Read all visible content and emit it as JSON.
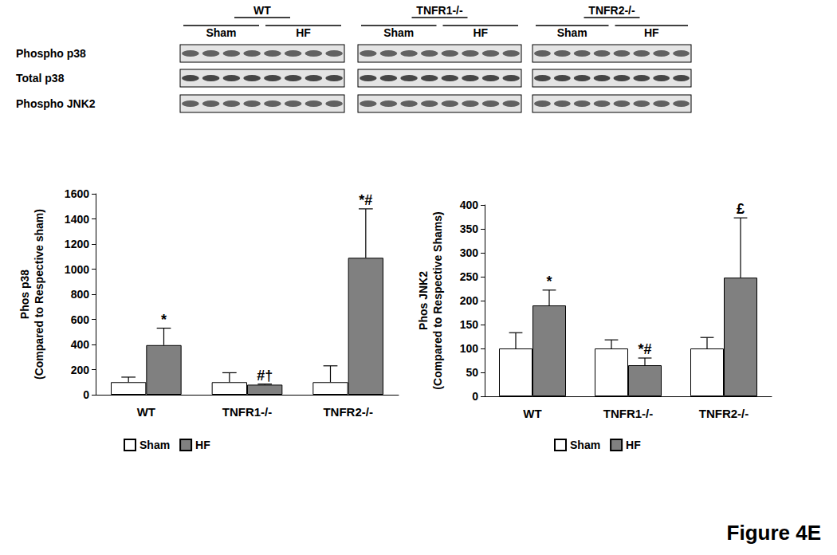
{
  "figure_label": "Figure 4E",
  "blots": {
    "groups": [
      {
        "label": "WT",
        "lanes": [
          "Sham",
          "HF"
        ]
      },
      {
        "label": "TNFR1-/-",
        "lanes": [
          "Sham",
          "HF"
        ]
      },
      {
        "label": "TNFR2-/-",
        "lanes": [
          "Sham",
          "HF"
        ]
      }
    ],
    "rows": [
      "Phospho p38",
      "Total p38",
      "Phospho JNK2"
    ]
  },
  "chart_data": [
    {
      "type": "bar",
      "y_label": "Phos p38\n(Compared to Respective sham)",
      "categories": [
        "WT",
        "TNFR1-/-",
        "TNFR2-/-"
      ],
      "series": [
        {
          "name": "Sham",
          "color": "#ffffff",
          "values": [
            100,
            100,
            100
          ],
          "errors": [
            40,
            75,
            130
          ]
        },
        {
          "name": "HF",
          "color": "#808080",
          "values": [
            395,
            80,
            1090
          ],
          "errors": [
            135,
            5,
            390
          ]
        }
      ],
      "annotations": [
        {
          "category": "WT",
          "series": "HF",
          "text": "*"
        },
        {
          "category": "TNFR1-/-",
          "series": "HF",
          "text": "#†"
        },
        {
          "category": "TNFR2-/-",
          "series": "HF",
          "text": "*#"
        }
      ],
      "ylim": [
        0,
        1600
      ],
      "yticks": [
        0,
        200,
        400,
        600,
        800,
        1000,
        1200,
        1400,
        1600
      ],
      "legend": "bottom",
      "grid": false
    },
    {
      "type": "bar",
      "y_label": "Phos JNK2\n(Compared to Respective Shams)",
      "categories": [
        "WT",
        "TNFR1-/-",
        "TNFR2-/-"
      ],
      "series": [
        {
          "name": "Sham",
          "color": "#ffffff",
          "values": [
            100,
            100,
            100
          ],
          "errors": [
            33,
            18,
            23
          ]
        },
        {
          "name": "HF",
          "color": "#808080",
          "values": [
            190,
            65,
            248
          ],
          "errors": [
            32,
            15,
            125
          ]
        }
      ],
      "annotations": [
        {
          "category": "WT",
          "series": "HF",
          "text": "*"
        },
        {
          "category": "TNFR1-/-",
          "series": "HF",
          "text": "*#"
        },
        {
          "category": "TNFR2-/-",
          "series": "HF",
          "text": "£"
        }
      ],
      "ylim": [
        0,
        400
      ],
      "yticks": [
        0,
        50,
        100,
        150,
        200,
        250,
        300,
        350,
        400
      ],
      "legend": "bottom",
      "grid": false
    }
  ]
}
